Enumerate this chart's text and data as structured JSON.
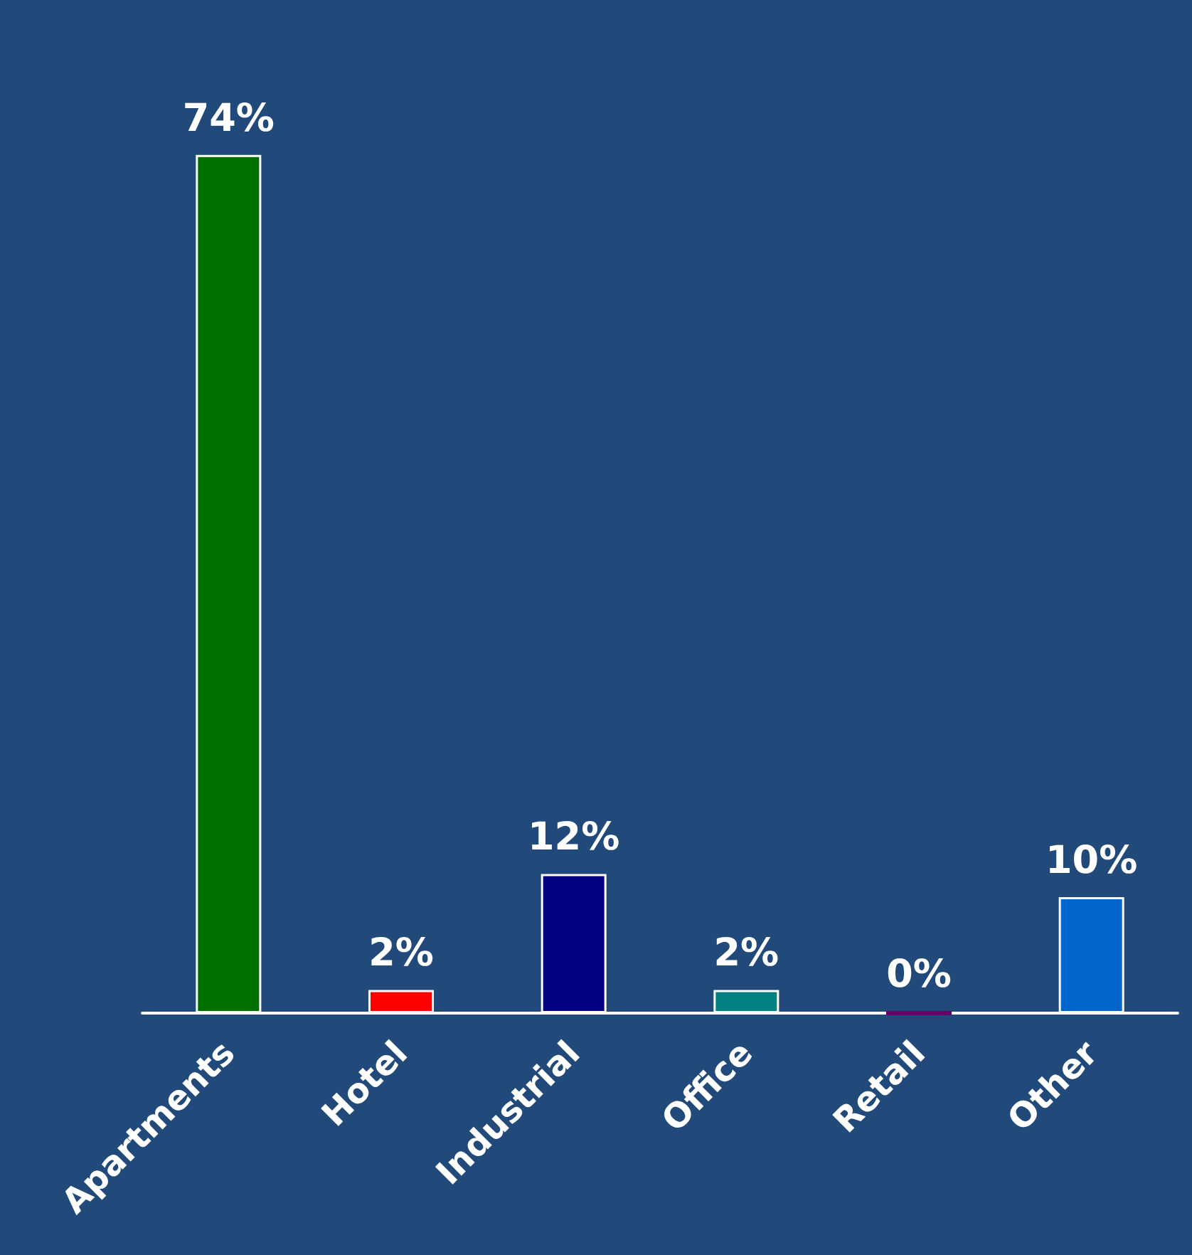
{
  "chart_data": {
    "type": "bar",
    "categories": [
      "Apartments",
      "Hotel",
      "Industrial",
      "Office",
      "Retail",
      "Other"
    ],
    "values": [
      74,
      2,
      12,
      2,
      0,
      10
    ],
    "colors": [
      "#007000",
      "#ff0000",
      "#000080",
      "#008080",
      "#660066",
      "#0066cc"
    ],
    "value_labels": [
      "74%",
      "2%",
      "12%",
      "2%",
      "0%",
      "10%"
    ],
    "grid": false
  }
}
